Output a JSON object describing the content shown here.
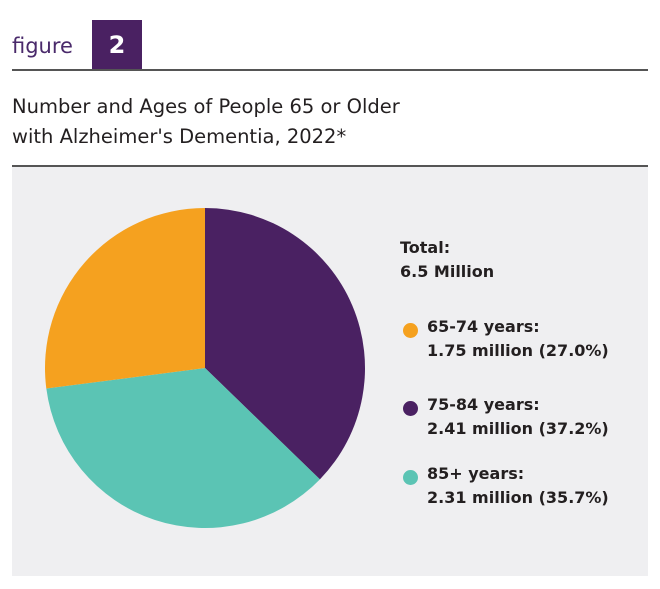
{
  "header": {
    "figure_word": "figure",
    "figure_number": "2",
    "title_line1": "Number and Ages of People 65 or Older",
    "title_line2": "with Alzheimer's Dementia, 2022*"
  },
  "legend": {
    "total_label": "Total:",
    "total_value": "6.5 Million",
    "items": [
      {
        "range": "65-74 years:",
        "value": "1.75 million (27.0%)",
        "color": "#f5a11f"
      },
      {
        "range": "75-84 years:",
        "value": "2.41 million (37.2%)",
        "color": "#4a2162"
      },
      {
        "range": "85+ years:",
        "value": "2.31 million (35.7%)",
        "color": "#5bc4b4"
      }
    ]
  },
  "chart_data": {
    "type": "pie",
    "categories": [
      "65-74 years",
      "75-84 years",
      "85+ years"
    ],
    "values": [
      1.75,
      2.41,
      2.31
    ],
    "percentages": [
      27.0,
      37.2,
      35.7
    ],
    "units": "million",
    "total": 6.5,
    "colors": [
      "#f5a11f",
      "#4a2162",
      "#5bc4b4"
    ],
    "legend_position": "right"
  }
}
